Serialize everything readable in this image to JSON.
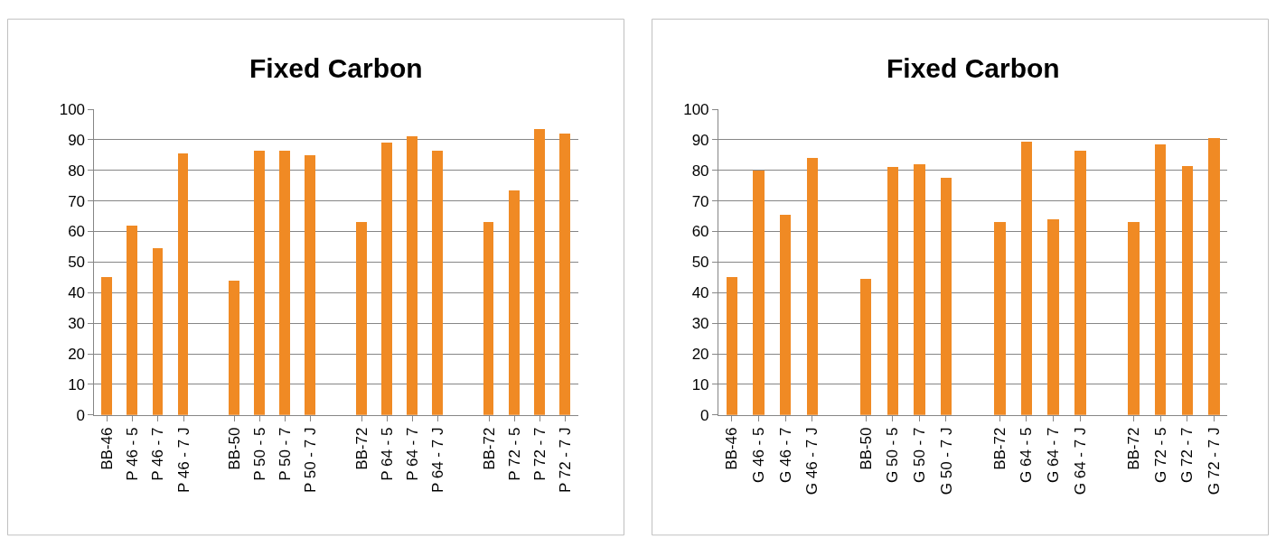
{
  "chart_data": [
    {
      "type": "bar",
      "title": "Fixed Carbon",
      "categories": [
        "BB-46",
        "P 46 - 5",
        "P 46 - 7",
        "P 46 - 7 J",
        null,
        "BB-50",
        "P 50 - 5",
        "P 50 - 7",
        "P 50 - 7 J",
        null,
        "BB-72",
        "P 64 - 5",
        "P 64 - 7",
        "P 64 - 7 J",
        null,
        "BB-72",
        "P 72 - 5",
        "P 72 - 7",
        "P 72 - 7 J"
      ],
      "values": [
        45,
        62,
        54.5,
        85.5,
        null,
        44,
        86.5,
        86.5,
        85,
        null,
        63,
        89,
        91,
        86.5,
        null,
        63,
        73.5,
        93.5,
        92
      ],
      "color": "#f08a24",
      "ylim": [
        0,
        100
      ],
      "yticks": [
        0,
        10,
        20,
        30,
        40,
        50,
        60,
        70,
        80,
        90,
        100
      ],
      "grid": "y"
    },
    {
      "type": "bar",
      "title": "Fixed Carbon",
      "categories": [
        "BB-46",
        "G 46 - 5",
        "G 46 - 7",
        "G 46 - 7 J",
        null,
        "BB-50",
        "G 50 - 5",
        "G 50 - 7",
        "G 50 - 7 J",
        null,
        "BB-72",
        "G 64 - 5",
        "G 64 - 7",
        "G 64 - 7 J",
        null,
        "BB-72",
        "G 72 - 5",
        "G 72 - 7",
        "G 72 - 7 J"
      ],
      "values": [
        45,
        80,
        65.5,
        84,
        null,
        44.5,
        81,
        82,
        77.5,
        null,
        63,
        89.5,
        64,
        86.5,
        null,
        63,
        88.5,
        81.5,
        90.5
      ],
      "color": "#f08a24",
      "ylim": [
        0,
        100
      ],
      "yticks": [
        0,
        10,
        20,
        30,
        40,
        50,
        60,
        70,
        80,
        90,
        100
      ],
      "grid": "y"
    }
  ]
}
